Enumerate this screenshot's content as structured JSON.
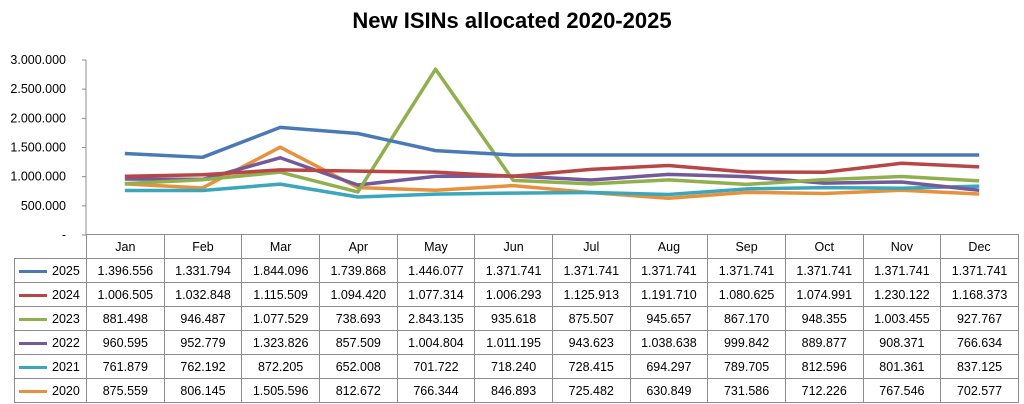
{
  "chart_data": {
    "type": "line",
    "title": "New ISINs allocated 2020-2025",
    "ylim": [
      0,
      3000000
    ],
    "yticks": [
      "-",
      "500.000",
      "1.000.000",
      "1.500.000",
      "2.000.000",
      "2.500.000",
      "3.000.000"
    ],
    "grid": false,
    "legend_placement": "data-table",
    "categories": [
      "Jan",
      "Feb",
      "Mar",
      "Apr",
      "May",
      "Jun",
      "Jul",
      "Aug",
      "Sep",
      "Oct",
      "Nov",
      "Dec"
    ],
    "series": [
      {
        "name": "2025",
        "color": "#4a7ab5",
        "values": [
          1396556,
          1331794,
          1844096,
          1739868,
          1446077,
          1371741,
          1371741,
          1371741,
          1371741,
          1371741,
          1371741,
          1371741
        ],
        "labels": [
          "1.396.556",
          "1.331.794",
          "1.844.096",
          "1.739.868",
          "1.446.077",
          "1.371.741",
          "1.371.741",
          "1.371.741",
          "1.371.741",
          "1.371.741",
          "1.371.741",
          "1.371.741"
        ]
      },
      {
        "name": "2024",
        "color": "#b94646",
        "values": [
          1006505,
          1032848,
          1115509,
          1094420,
          1077314,
          1006293,
          1125913,
          1191710,
          1080625,
          1074991,
          1230122,
          1168373
        ],
        "labels": [
          "1.006.505",
          "1.032.848",
          "1.115.509",
          "1.094.420",
          "1.077.314",
          "1.006.293",
          "1.125.913",
          "1.191.710",
          "1.080.625",
          "1.074.991",
          "1.230.122",
          "1.168.373"
        ]
      },
      {
        "name": "2023",
        "color": "#8fb04c",
        "values": [
          881498,
          946487,
          1077529,
          738693,
          2843135,
          935618,
          875507,
          945657,
          867170,
          948355,
          1003455,
          927767
        ],
        "labels": [
          "881.498",
          "946.487",
          "1.077.529",
          "738.693",
          "2.843.135",
          "935.618",
          "875.507",
          "945.657",
          "867.170",
          "948.355",
          "1.003.455",
          "927.767"
        ]
      },
      {
        "name": "2022",
        "color": "#735a9a",
        "values": [
          960595,
          952779,
          1323826,
          857509,
          1004804,
          1011195,
          943623,
          1038638,
          999842,
          889877,
          908371,
          766634
        ],
        "labels": [
          "960.595",
          "952.779",
          "1.323.826",
          "857.509",
          "1.004.804",
          "1.011.195",
          "943.623",
          "1.038.638",
          "999.842",
          "889.877",
          "908.371",
          "766.634"
        ]
      },
      {
        "name": "2021",
        "color": "#3aa7bd",
        "values": [
          761879,
          762192,
          872205,
          652008,
          701722,
          718240,
          728415,
          694297,
          789705,
          812596,
          801361,
          837125
        ],
        "labels": [
          "761.879",
          "762.192",
          "872.205",
          "652.008",
          "701.722",
          "718.240",
          "728.415",
          "694.297",
          "789.705",
          "812.596",
          "801.361",
          "837.125"
        ]
      },
      {
        "name": "2020",
        "color": "#e8913c",
        "values": [
          875559,
          806145,
          1505596,
          812672,
          766344,
          846893,
          725482,
          630849,
          731586,
          712226,
          767546,
          702577
        ],
        "labels": [
          "875.559",
          "806.145",
          "1.505.596",
          "812.672",
          "766.344",
          "846.893",
          "725.482",
          "630.849",
          "731.586",
          "712.226",
          "767.546",
          "702.577"
        ]
      }
    ]
  }
}
